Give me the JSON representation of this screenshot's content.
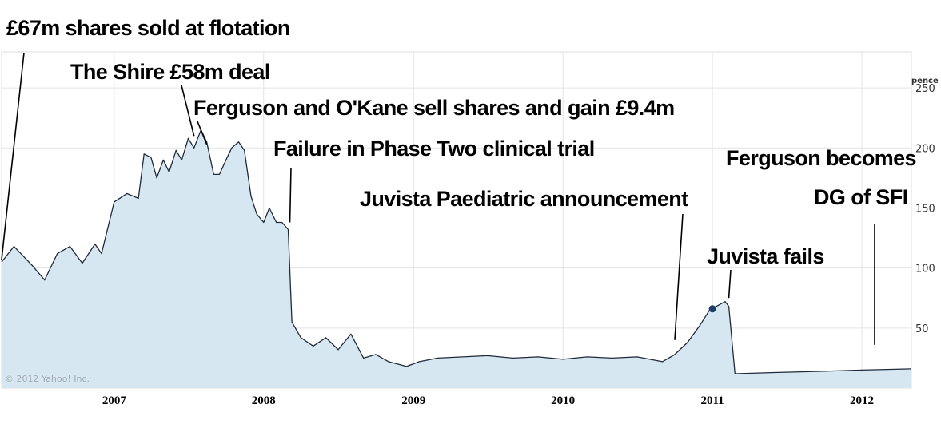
{
  "chart_data": {
    "type": "area",
    "title": "",
    "xlabel": "",
    "ylabel": "pence",
    "credit": "© 2012 Yahoo! Inc.",
    "x_ticks": [
      "2007",
      "2008",
      "2009",
      "2010",
      "2011",
      "2012"
    ],
    "y_ticks": [
      50,
      100,
      150,
      200,
      250
    ],
    "ylim": [
      0,
      280
    ],
    "xlim": [
      "2006-04-01",
      "2012-05-01"
    ],
    "grid": true,
    "series": [
      {
        "values": [
          [
            "2006-04-01",
            105
          ],
          [
            "2006-05-01",
            118
          ],
          [
            "2006-06-15",
            102
          ],
          [
            "2006-07-15",
            90
          ],
          [
            "2006-08-15",
            112
          ],
          [
            "2006-09-15",
            118
          ],
          [
            "2006-10-15",
            104
          ],
          [
            "2006-11-15",
            120
          ],
          [
            "2006-12-01",
            112
          ],
          [
            "2007-01-01",
            155
          ],
          [
            "2007-02-01",
            162
          ],
          [
            "2007-03-01",
            158
          ],
          [
            "2007-03-15",
            195
          ],
          [
            "2007-04-01",
            192
          ],
          [
            "2007-04-15",
            175
          ],
          [
            "2007-05-01",
            190
          ],
          [
            "2007-05-15",
            180
          ],
          [
            "2007-06-01",
            198
          ],
          [
            "2007-06-15",
            190
          ],
          [
            "2007-07-01",
            208
          ],
          [
            "2007-07-15",
            200
          ],
          [
            "2007-08-01",
            215
          ],
          [
            "2007-08-15",
            205
          ],
          [
            "2007-09-01",
            178
          ],
          [
            "2007-09-15",
            178
          ],
          [
            "2007-10-01",
            190
          ],
          [
            "2007-10-15",
            200
          ],
          [
            "2007-11-01",
            205
          ],
          [
            "2007-11-15",
            198
          ],
          [
            "2007-12-01",
            160
          ],
          [
            "2007-12-15",
            145
          ],
          [
            "2008-01-01",
            138
          ],
          [
            "2008-01-15",
            150
          ],
          [
            "2008-02-01",
            138
          ],
          [
            "2008-02-15",
            138
          ],
          [
            "2008-03-01",
            132
          ],
          [
            "2008-03-10",
            55
          ],
          [
            "2008-04-01",
            42
          ],
          [
            "2008-05-01",
            35
          ],
          [
            "2008-06-01",
            42
          ],
          [
            "2008-07-01",
            32
          ],
          [
            "2008-08-01",
            45
          ],
          [
            "2008-09-01",
            25
          ],
          [
            "2008-10-01",
            28
          ],
          [
            "2008-11-01",
            22
          ],
          [
            "2008-12-15",
            18
          ],
          [
            "2009-01-15",
            22
          ],
          [
            "2009-03-01",
            25
          ],
          [
            "2009-05-01",
            26
          ],
          [
            "2009-07-01",
            27
          ],
          [
            "2009-09-01",
            25
          ],
          [
            "2009-11-01",
            26
          ],
          [
            "2010-01-01",
            24
          ],
          [
            "2010-03-01",
            26
          ],
          [
            "2010-05-01",
            25
          ],
          [
            "2010-07-01",
            26
          ],
          [
            "2010-09-01",
            22
          ],
          [
            "2010-10-01",
            28
          ],
          [
            "2010-11-01",
            38
          ],
          [
            "2010-12-01",
            52
          ],
          [
            "2010-12-25",
            65
          ],
          [
            "2011-01-10",
            68
          ],
          [
            "2011-02-01",
            72
          ],
          [
            "2011-02-10",
            68
          ],
          [
            "2011-02-25",
            12
          ],
          [
            "2011-06-01",
            13
          ],
          [
            "2011-10-01",
            14
          ],
          [
            "2012-01-01",
            15
          ],
          [
            "2012-05-01",
            16
          ]
        ]
      }
    ],
    "marker": {
      "date": "2011-01-01",
      "value": 66
    },
    "annotations": [
      {
        "text": "£67m shares sold at flotation",
        "date": "2006-04-01",
        "value": 107
      },
      {
        "text": "The Shire £58m deal",
        "date": "2007-07-15",
        "value": 210
      },
      {
        "text": "Ferguson and O'Kane sell shares and gain £9.4m",
        "date": "2007-08-15",
        "value": 203
      },
      {
        "text": "Failure in Phase Two clinical trial",
        "date": "2008-03-05",
        "value": 138
      },
      {
        "text": "Juvista Paediatric announcement",
        "date": "2010-10-01",
        "value": 40
      },
      {
        "text": "Juvista fails",
        "date": "2011-02-10",
        "value": 75
      },
      {
        "text": "Ferguson becomes",
        "date": "2012-01-01",
        "value": 36
      },
      {
        "text": "DG of SFI",
        "date": "2012-01-01",
        "value": 36
      }
    ],
    "colors": {
      "area_fill": "#d7e7f1",
      "line": "#1e2b3a",
      "grid": "#e3e3e3",
      "marker": "#1f3f66"
    }
  }
}
